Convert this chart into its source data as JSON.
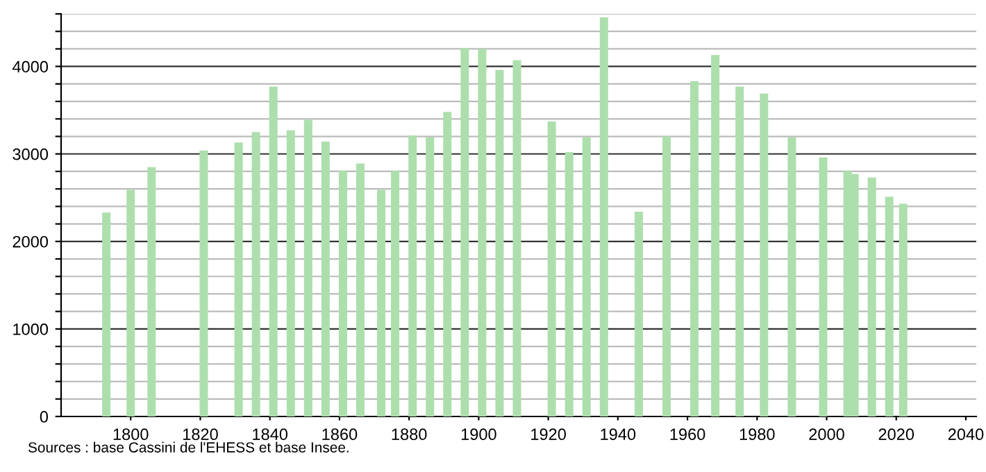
{
  "chart_data": {
    "type": "bar",
    "x": [
      1793,
      1800,
      1806,
      1821,
      1831,
      1836,
      1841,
      1846,
      1851,
      1856,
      1861,
      1866,
      1872,
      1876,
      1881,
      1886,
      1891,
      1896,
      1901,
      1906,
      1911,
      1921,
      1926,
      1931,
      1936,
      1946,
      1954,
      1962,
      1968,
      1975,
      1982,
      1990,
      1999,
      2006,
      2008,
      2013,
      2018,
      2022
    ],
    "values": [
      2330,
      2590,
      2850,
      3040,
      3130,
      3250,
      3770,
      3270,
      3390,
      3140,
      2810,
      2890,
      2590,
      2810,
      3210,
      3190,
      3480,
      4210,
      4200,
      3960,
      4070,
      3370,
      3020,
      3190,
      4560,
      2340,
      3200,
      3830,
      4130,
      3770,
      3690,
      3190,
      2960,
      2810,
      2770,
      2730,
      2510,
      2430
    ],
    "color": "#addfad",
    "xlim": [
      1780,
      2043
    ],
    "xticks": [
      1800,
      1820,
      1840,
      1860,
      1880,
      1900,
      1920,
      1940,
      1960,
      1980,
      2000,
      2020,
      2040
    ],
    "ylim": [
      0,
      4600
    ],
    "yticks": [
      0,
      {
        "value": 200,
        "label": null
      },
      {
        "value": 400,
        "label": null
      },
      {
        "value": 600,
        "label": null
      },
      {
        "value": 800,
        "label": null
      },
      1000,
      {
        "value": 1200,
        "label": null
      },
      {
        "value": 1400,
        "label": null
      },
      {
        "value": 1600,
        "label": null
      },
      {
        "value": 1800,
        "label": null
      },
      2000,
      {
        "value": 2200,
        "label": null
      },
      {
        "value": 2400,
        "label": null
      },
      {
        "value": 2600,
        "label": null
      },
      {
        "value": 2800,
        "label": null
      },
      3000,
      {
        "value": 3200,
        "label": null
      },
      {
        "value": 3400,
        "label": null
      },
      {
        "value": 3600,
        "label": null
      },
      {
        "value": 3800,
        "label": null
      },
      4000,
      {
        "value": 4200,
        "label": null
      },
      {
        "value": 4400,
        "label": null
      },
      {
        "value": 4600,
        "label": null
      }
    ],
    "grid": "y",
    "annotations": [
      "Sources : base Cassini de l'EHESS et base Insee."
    ]
  }
}
